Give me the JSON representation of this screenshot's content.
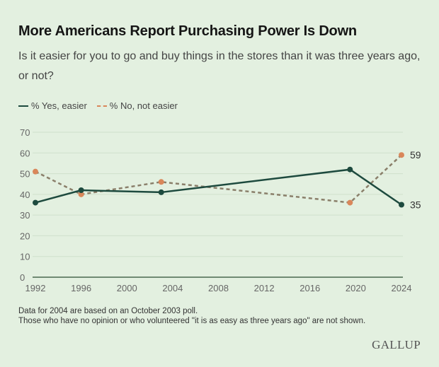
{
  "header": {
    "title": "More Americans Report Purchasing Power Is Down",
    "subtitle": "Is it easier for you to go and buy things in the stores than it was three years ago, or not?"
  },
  "legend": {
    "yes_label": "% Yes, easier",
    "no_label": "% No, not easier"
  },
  "footer": {
    "note1": "Data for 2004 are based on an October 2003 poll.",
    "note2": "Those who have no opinion or who volunteered \"it is as easy as three years ago\" are not shown.",
    "brand": "GALLUP"
  },
  "colors": {
    "yes": "#1d4a3e",
    "no": "#d9875a",
    "grid": "#cfe0cc",
    "axis": "#6f8a73",
    "background": "#e3f0e0"
  },
  "chart_data": {
    "type": "line",
    "title": "More Americans Report Purchasing Power Is Down",
    "xlabel": "",
    "ylabel": "",
    "ylim": [
      0,
      70
    ],
    "xlim": [
      1992,
      2024
    ],
    "yticks": [
      0,
      10,
      20,
      30,
      40,
      50,
      60,
      70
    ],
    "xticks": [
      1992,
      1996,
      2000,
      2004,
      2008,
      2012,
      2016,
      2020,
      2024
    ],
    "grid": true,
    "legend_position": "top-left",
    "series": [
      {
        "name": "% Yes, easier",
        "style": "solid",
        "x": [
          1992,
          1996,
          2003,
          2019.5,
          2024
        ],
        "values": [
          36,
          42,
          41,
          52,
          35
        ],
        "end_label": "35"
      },
      {
        "name": "% No, not easier",
        "style": "dashed",
        "x": [
          1992,
          1996,
          2003,
          2019.5,
          2024
        ],
        "values": [
          51,
          40,
          46,
          36,
          59
        ],
        "end_label": "59"
      }
    ]
  }
}
